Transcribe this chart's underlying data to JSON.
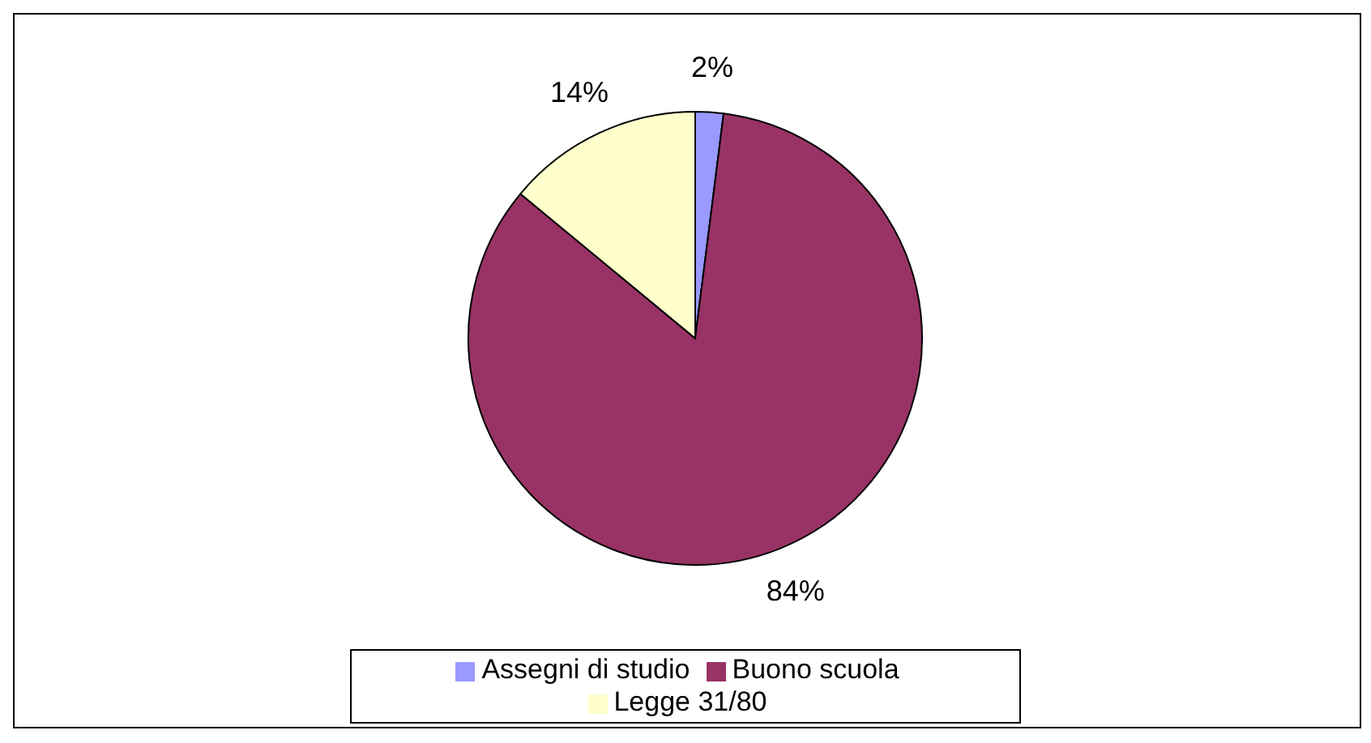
{
  "chart_data": {
    "type": "pie",
    "categories": [
      "Assegni di studio",
      "Buono scuola",
      "Legge 31/80"
    ],
    "values": [
      2,
      84,
      14
    ],
    "colors": [
      "#9999ff",
      "#993366",
      "#ffffcc"
    ],
    "value_labels": [
      "2%",
      "84%",
      "14%"
    ],
    "legend": "bottom"
  }
}
